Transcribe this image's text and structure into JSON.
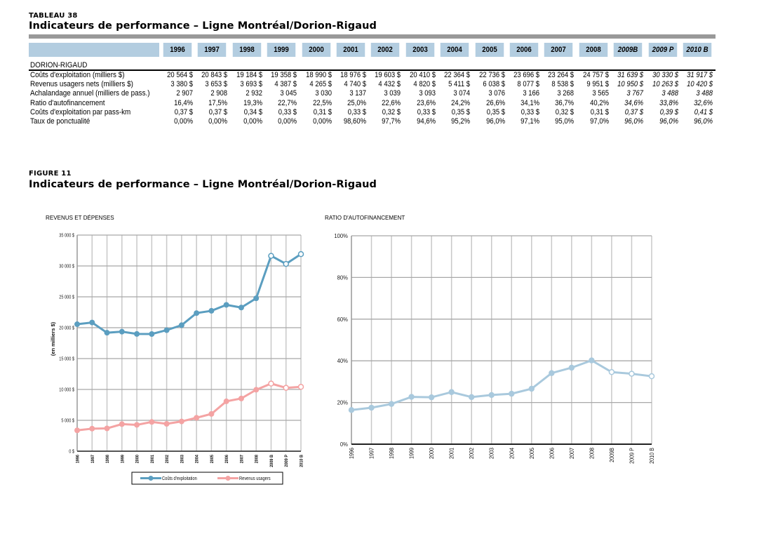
{
  "table": {
    "caption": "TABLEAU 38",
    "title": "Indicateurs de performance – Ligne Montréal/Dorion-Rigaud",
    "columns": [
      {
        "label": "1996",
        "projected": false
      },
      {
        "label": "1997",
        "projected": false
      },
      {
        "label": "1998",
        "projected": false
      },
      {
        "label": "1999",
        "projected": false
      },
      {
        "label": "2000",
        "projected": false
      },
      {
        "label": "2001",
        "projected": false
      },
      {
        "label": "2002",
        "projected": false
      },
      {
        "label": "2003",
        "projected": false
      },
      {
        "label": "2004",
        "projected": false
      },
      {
        "label": "2005",
        "projected": false
      },
      {
        "label": "2006",
        "projected": false
      },
      {
        "label": "2007",
        "projected": false
      },
      {
        "label": "2008",
        "projected": false
      },
      {
        "label": "2009B",
        "projected": true
      },
      {
        "label": "2009 P",
        "projected": true
      },
      {
        "label": "2010 B",
        "projected": true
      }
    ],
    "section": "DORION-RIGAUD",
    "rows": [
      {
        "label": "Coûts d'exploitation (milliers $)",
        "values": [
          "20 564 $",
          "20 843 $",
          "19 184 $",
          "19 358 $",
          "18 990 $",
          "18 976 $",
          "19 603 $",
          "20 410 $",
          "22 364 $",
          "22 736 $",
          "23 696 $",
          "23 264 $",
          "24 757 $",
          "31 639 $",
          "30 330 $",
          "31 917 $"
        ]
      },
      {
        "label": "Revenus usagers nets (milliers $)",
        "values": [
          "3 380 $",
          "3 653 $",
          "3 693 $",
          "4 387 $",
          "4 265 $",
          "4 740 $",
          "4 432 $",
          "4 820 $",
          "5 411 $",
          "6 038 $",
          "8 077 $",
          "8 538 $",
          "9 951 $",
          "10 950 $",
          "10 263 $",
          "10 420 $"
        ]
      },
      {
        "label": "Achalandage annuel (milliers de pass.)",
        "values": [
          "2 907",
          "2 908",
          "2 932",
          "3 045",
          "3 030",
          "3 137",
          "3 039",
          "3 093",
          "3 074",
          "3 076",
          "3 166",
          "3 268",
          "3 565",
          "3 767",
          "3 488",
          "3 488"
        ]
      },
      {
        "label": "Ratio d'autofinancement",
        "values": [
          "16,4%",
          "17,5%",
          "19,3%",
          "22,7%",
          "22,5%",
          "25,0%",
          "22,6%",
          "23,6%",
          "24,2%",
          "26,6%",
          "34,1%",
          "36,7%",
          "40,2%",
          "34,6%",
          "33,8%",
          "32,6%"
        ]
      },
      {
        "label": "Coûts d'exploitation par pass-km",
        "values": [
          "0,37 $",
          "0,37 $",
          "0,34 $",
          "0,33 $",
          "0,31 $",
          "0,33 $",
          "0,32 $",
          "0,33 $",
          "0,35 $",
          "0,35 $",
          "0,33 $",
          "0,32 $",
          "0,31 $",
          "0,37 $",
          "0,39 $",
          "0,41 $"
        ]
      },
      {
        "label": "Taux de ponctualité",
        "values": [
          "0,00%",
          "0,00%",
          "0,00%",
          "0,00%",
          "0,00%",
          "98,60%",
          "97,7%",
          "94,6%",
          "95,2%",
          "96,0%",
          "97,1%",
          "95,0%",
          "97,0%",
          "96,0%",
          "96,0%",
          "96,0%"
        ]
      }
    ]
  },
  "figure": {
    "caption": "FIGURE 11",
    "title": "Indicateurs de performance – Ligne Montréal/Dorion-Rigaud"
  },
  "chart_data": [
    {
      "type": "line",
      "title": "REVENUS ET DÉPENSES",
      "xlabel": "",
      "ylabel": "(en milliers $)",
      "x": [
        "1996",
        "1997",
        "1998",
        "1999",
        "2000",
        "2001",
        "2002",
        "2003",
        "2004",
        "2005",
        "2006",
        "2007",
        "2008",
        "2009 B",
        "2009 P",
        "2010 B"
      ],
      "ylim": [
        0,
        35000
      ],
      "yticks": [
        0,
        5000,
        10000,
        15000,
        20000,
        25000,
        30000,
        35000
      ],
      "ytick_labels": [
        "0 $",
        "5 000 $",
        "10 000 $",
        "15 000 $",
        "20 000 $",
        "25 000 $",
        "30 000 $",
        "35 000 $"
      ],
      "grid": true,
      "legend": "bottom",
      "projected_from_index": 13,
      "series": [
        {
          "name": "Coûts d'exploitation",
          "color": "#5b9ec0",
          "values": [
            20564,
            20843,
            19184,
            19358,
            18990,
            18976,
            19603,
            20410,
            22364,
            22736,
            23696,
            23264,
            24757,
            31639,
            30330,
            31917
          ]
        },
        {
          "name": "Revenus usagers",
          "color": "#f4a3a3",
          "values": [
            3380,
            3653,
            3693,
            4387,
            4265,
            4740,
            4432,
            4820,
            5411,
            6038,
            8077,
            8538,
            9951,
            10950,
            10263,
            10420
          ]
        }
      ]
    },
    {
      "type": "line",
      "title": "RATIO D'AUTOFINANCEMENT",
      "xlabel": "",
      "ylabel": "",
      "x": [
        "1996",
        "1997",
        "1998",
        "1999",
        "2000",
        "2001",
        "2002",
        "2003",
        "2004",
        "2005",
        "2006",
        "2007",
        "2008",
        "2009B",
        "2009 P",
        "2010 B"
      ],
      "ylim": [
        0,
        100
      ],
      "yticks": [
        0,
        20,
        40,
        60,
        80,
        100
      ],
      "ytick_labels": [
        "0%",
        "20%",
        "40%",
        "60%",
        "80%",
        "100%"
      ],
      "grid": true,
      "legend": "none",
      "projected_from_index": 13,
      "series": [
        {
          "name": "Ratio d'autofinancement",
          "color": "#a9c9dd",
          "values": [
            16.4,
            17.5,
            19.3,
            22.7,
            22.5,
            25.0,
            22.6,
            23.6,
            24.2,
            26.6,
            34.1,
            36.7,
            40.2,
            34.6,
            33.8,
            32.6
          ]
        }
      ]
    }
  ]
}
